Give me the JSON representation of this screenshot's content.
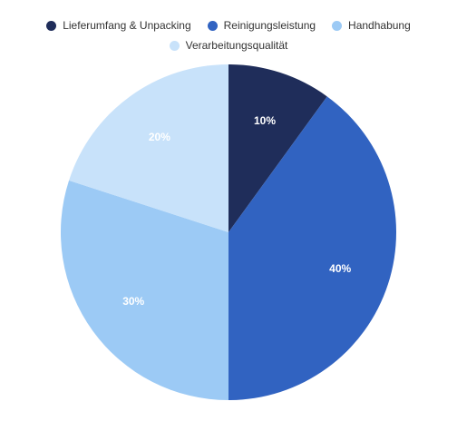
{
  "chart_data": {
    "type": "pie",
    "categories": [
      "Lieferumfang & Unpacking",
      "Reinigungsleistung",
      "Handhabung",
      "Verarbeitungsqualität"
    ],
    "values": [
      10,
      40,
      30,
      20
    ],
    "value_labels": [
      "10%",
      "40%",
      "30%",
      "20%"
    ],
    "colors": [
      "#1f2d5a",
      "#3163c1",
      "#9ccaf5",
      "#c8e2fa"
    ],
    "label_colors": [
      "#ffffff",
      "#ffffff",
      "#ffffff",
      "#ffffff"
    ],
    "legend_position": "top",
    "start_angle": "12 o'clock, clockwise"
  }
}
